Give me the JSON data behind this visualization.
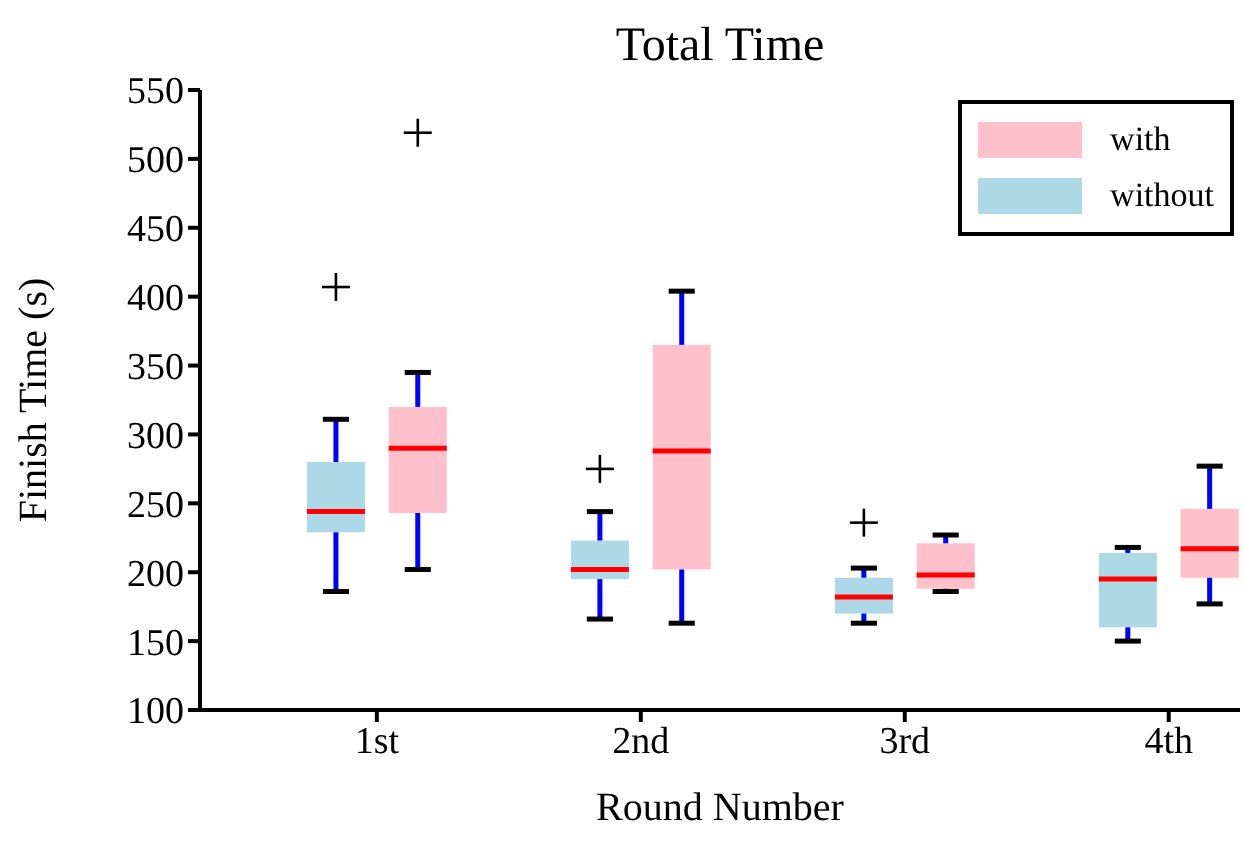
{
  "chart_data": {
    "type": "box",
    "title": "Total Time",
    "xlabel": "Round Number",
    "ylabel": "Finish Time (s)",
    "categories": [
      "1st",
      "2nd",
      "3rd",
      "4th"
    ],
    "ylim": [
      100,
      550
    ],
    "yticks": [
      100,
      150,
      200,
      250,
      300,
      350,
      400,
      450,
      500,
      550
    ],
    "legend": "top right",
    "series": [
      {
        "name": "with",
        "color": "#ffc0cb",
        "boxes": [
          {
            "low": 202,
            "q1": 243,
            "median": 290,
            "q3": 320,
            "high": 345,
            "outliers": [
              519
            ]
          },
          {
            "low": 163,
            "q1": 202,
            "median": 288,
            "q3": 365,
            "high": 404
          },
          {
            "low": 186,
            "q1": 188,
            "median": 198,
            "q3": 221,
            "high": 227
          },
          {
            "low": 177,
            "q1": 196,
            "median": 217,
            "q3": 246,
            "high": 277
          }
        ]
      },
      {
        "name": "without",
        "color": "#add8e6",
        "boxes": [
          {
            "low": 186,
            "q1": 229,
            "median": 244,
            "q3": 280,
            "high": 311,
            "outliers": [
              407
            ]
          },
          {
            "low": 166,
            "q1": 195,
            "median": 202,
            "q3": 223,
            "high": 244,
            "outliers": [
              275
            ]
          },
          {
            "low": 163,
            "q1": 170,
            "median": 182,
            "q3": 196,
            "high": 203,
            "outliers": [
              236
            ]
          },
          {
            "low": 150,
            "q1": 160,
            "median": 195,
            "q3": 214,
            "high": 218
          }
        ]
      }
    ]
  }
}
